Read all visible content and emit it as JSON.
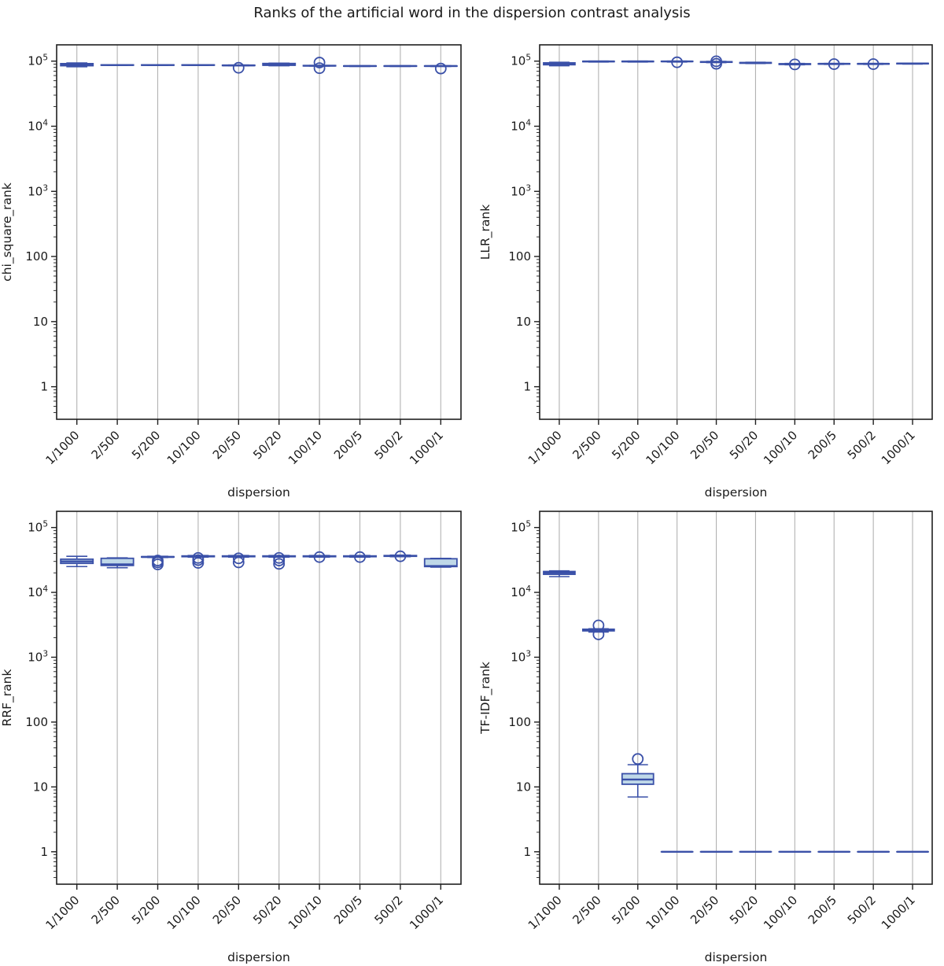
{
  "title": "Ranks of the artificial word in the dispersion contrast analysis",
  "colors": {
    "box_edge": "#3a50a8",
    "box_fill": "#bfd8e8",
    "grid": "#b2b2b2",
    "spine": "#1f1f1f",
    "text": "#1a1a1a"
  },
  "chart_data": [
    {
      "type": "boxplot",
      "ylabel": "chi_square_rank",
      "xlabel": "dispersion",
      "yscale": "log",
      "ylim_log": [
        -0.5,
        5.25
      ],
      "grid": "vertical",
      "legend": "none",
      "yticks": [
        {
          "base": "1",
          "sup": "",
          "log": 0
        },
        {
          "base": "10",
          "sup": "",
          "log": 1
        },
        {
          "base": "100",
          "sup": "",
          "log": 2
        },
        {
          "base": "10",
          "sup": "3",
          "log": 3
        },
        {
          "base": "10",
          "sup": "4",
          "log": 4
        },
        {
          "base": "10",
          "sup": "5",
          "log": 5
        }
      ],
      "categories": [
        "1/1000",
        "2/500",
        "5/200",
        "10/100",
        "20/50",
        "50/20",
        "100/10",
        "200/5",
        "500/2",
        "1000/1"
      ],
      "boxes": [
        {
          "whislo": 82000,
          "q1": 85000,
          "med": 88000,
          "q3": 91500,
          "whishi": 93500,
          "fliers": []
        },
        {
          "whislo": 86000,
          "q1": 86500,
          "med": 87000,
          "q3": 87500,
          "whishi": 88000,
          "fliers": []
        },
        {
          "whislo": 86000,
          "q1": 86500,
          "med": 87000,
          "q3": 87500,
          "whishi": 88000,
          "fliers": []
        },
        {
          "whislo": 86000,
          "q1": 86500,
          "med": 87000,
          "q3": 87500,
          "whishi": 88000,
          "fliers": []
        },
        {
          "whislo": 85000,
          "q1": 85500,
          "med": 86000,
          "q3": 86500,
          "whishi": 87000,
          "fliers": [
            79000
          ]
        },
        {
          "whislo": 85000,
          "q1": 86500,
          "med": 87500,
          "q3": 92000,
          "whishi": 93000,
          "fliers": []
        },
        {
          "whislo": 84000,
          "q1": 84500,
          "med": 85000,
          "q3": 85500,
          "whishi": 86000,
          "fliers": [
            95000,
            78000
          ]
        },
        {
          "whislo": 83000,
          "q1": 83500,
          "med": 84000,
          "q3": 84500,
          "whishi": 85000,
          "fliers": []
        },
        {
          "whislo": 83000,
          "q1": 83500,
          "med": 84000,
          "q3": 84500,
          "whishi": 85000,
          "fliers": []
        },
        {
          "whislo": 83000,
          "q1": 83500,
          "med": 84000,
          "q3": 84500,
          "whishi": 85000,
          "fliers": [
            77000
          ]
        }
      ]
    },
    {
      "type": "boxplot",
      "ylabel": "LLR_rank",
      "xlabel": "dispersion",
      "yscale": "log",
      "ylim_log": [
        -0.5,
        5.25
      ],
      "grid": "vertical",
      "legend": "none",
      "yticks": [
        {
          "base": "1",
          "sup": "",
          "log": 0
        },
        {
          "base": "10",
          "sup": "",
          "log": 1
        },
        {
          "base": "100",
          "sup": "",
          "log": 2
        },
        {
          "base": "10",
          "sup": "3",
          "log": 3
        },
        {
          "base": "10",
          "sup": "4",
          "log": 4
        },
        {
          "base": "10",
          "sup": "5",
          "log": 5
        }
      ],
      "categories": [
        "1/1000",
        "2/500",
        "5/200",
        "10/100",
        "20/50",
        "50/20",
        "100/10",
        "200/5",
        "500/2",
        "1000/1"
      ],
      "boxes": [
        {
          "whislo": 85000,
          "q1": 88000,
          "med": 90000,
          "q3": 94000,
          "whishi": 96000,
          "fliers": []
        },
        {
          "whislo": 97000,
          "q1": 98000,
          "med": 99000,
          "q3": 99500,
          "whishi": 100000,
          "fliers": []
        },
        {
          "whislo": 97000,
          "q1": 98000,
          "med": 99000,
          "q3": 99500,
          "whishi": 100000,
          "fliers": []
        },
        {
          "whislo": 97000,
          "q1": 98500,
          "med": 99000,
          "q3": 99500,
          "whishi": 100000,
          "fliers": [
            96000
          ]
        },
        {
          "whislo": 95000,
          "q1": 96000,
          "med": 97000,
          "q3": 98000,
          "whishi": 99000,
          "fliers": [
            99500,
            91000
          ]
        },
        {
          "whislo": 92000,
          "q1": 93000,
          "med": 94000,
          "q3": 95000,
          "whishi": 96000,
          "fliers": []
        },
        {
          "whislo": 88000,
          "q1": 89000,
          "med": 90000,
          "q3": 91000,
          "whishi": 92000,
          "fliers": [
            89000
          ]
        },
        {
          "whislo": 89000,
          "q1": 90000,
          "med": 91000,
          "q3": 91500,
          "whishi": 92000,
          "fliers": [
            90000
          ]
        },
        {
          "whislo": 89000,
          "q1": 90000,
          "med": 91000,
          "q3": 91500,
          "whishi": 92000,
          "fliers": [
            90000
          ]
        },
        {
          "whislo": 90000,
          "q1": 91000,
          "med": 92000,
          "q3": 92500,
          "whishi": 93000,
          "fliers": []
        }
      ]
    },
    {
      "type": "boxplot",
      "ylabel": "RRF_rank",
      "xlabel": "dispersion",
      "yscale": "log",
      "ylim_log": [
        -0.5,
        5.25
      ],
      "grid": "vertical",
      "legend": "none",
      "yticks": [
        {
          "base": "1",
          "sup": "",
          "log": 0
        },
        {
          "base": "10",
          "sup": "",
          "log": 1
        },
        {
          "base": "100",
          "sup": "",
          "log": 2
        },
        {
          "base": "10",
          "sup": "3",
          "log": 3
        },
        {
          "base": "10",
          "sup": "4",
          "log": 4
        },
        {
          "base": "10",
          "sup": "5",
          "log": 5
        }
      ],
      "categories": [
        "1/1000",
        "2/500",
        "5/200",
        "10/100",
        "20/50",
        "50/20",
        "100/10",
        "200/5",
        "500/2",
        "1000/1"
      ],
      "boxes": [
        {
          "whislo": 25000,
          "q1": 28000,
          "med": 30000,
          "q3": 32500,
          "whishi": 36000,
          "fliers": []
        },
        {
          "whislo": 24000,
          "q1": 26000,
          "med": 27000,
          "q3": 33500,
          "whishi": 34000,
          "fliers": []
        },
        {
          "whislo": 34500,
          "q1": 35000,
          "med": 35200,
          "q3": 35500,
          "whishi": 36000,
          "fliers": [
            31000,
            29000,
            27000
          ]
        },
        {
          "whislo": 35000,
          "q1": 35500,
          "med": 36000,
          "q3": 36500,
          "whishi": 37000,
          "fliers": [
            34000,
            31500,
            28500
          ]
        },
        {
          "whislo": 35000,
          "q1": 35500,
          "med": 36000,
          "q3": 36500,
          "whishi": 37000,
          "fliers": [
            33500,
            29000
          ]
        },
        {
          "whislo": 35000,
          "q1": 35500,
          "med": 36000,
          "q3": 36500,
          "whishi": 37000,
          "fliers": [
            34000,
            31000,
            27500
          ]
        },
        {
          "whislo": 35000,
          "q1": 35500,
          "med": 36000,
          "q3": 36500,
          "whishi": 37000,
          "fliers": [
            35000
          ]
        },
        {
          "whislo": 35000,
          "q1": 35500,
          "med": 36000,
          "q3": 36500,
          "whishi": 37000,
          "fliers": [
            35000
          ]
        },
        {
          "whislo": 35500,
          "q1": 36000,
          "med": 36500,
          "q3": 37000,
          "whishi": 37500,
          "fliers": [
            36000
          ]
        },
        {
          "whislo": 24500,
          "q1": 25000,
          "med": 25500,
          "q3": 33000,
          "whishi": 33500,
          "fliers": []
        }
      ]
    },
    {
      "type": "boxplot",
      "ylabel": "TF-IDF_rank",
      "xlabel": "dispersion",
      "yscale": "log",
      "ylim_log": [
        -0.5,
        5.25
      ],
      "grid": "vertical",
      "legend": "none",
      "yticks": [
        {
          "base": "1",
          "sup": "",
          "log": 0
        },
        {
          "base": "10",
          "sup": "",
          "log": 1
        },
        {
          "base": "100",
          "sup": "",
          "log": 2
        },
        {
          "base": "10",
          "sup": "3",
          "log": 3
        },
        {
          "base": "10",
          "sup": "4",
          "log": 4
        },
        {
          "base": "10",
          "sup": "5",
          "log": 5
        }
      ],
      "categories": [
        "1/1000",
        "2/500",
        "5/200",
        "10/100",
        "20/50",
        "50/20",
        "100/10",
        "200/5",
        "500/2",
        "1000/1"
      ],
      "boxes": [
        {
          "whislo": 17500,
          "q1": 19000,
          "med": 20000,
          "q3": 21000,
          "whishi": 21500,
          "fliers": []
        },
        {
          "whislo": 2450,
          "q1": 2550,
          "med": 2600,
          "q3": 2700,
          "whishi": 2750,
          "fliers": [
            3100,
            2250
          ]
        },
        {
          "whislo": 7,
          "q1": 11,
          "med": 13,
          "q3": 16,
          "whishi": 22,
          "fliers": [
            27
          ]
        },
        {
          "whislo": 1,
          "q1": 1,
          "med": 1,
          "q3": 1,
          "whishi": 1,
          "fliers": []
        },
        {
          "whislo": 1,
          "q1": 1,
          "med": 1,
          "q3": 1,
          "whishi": 1,
          "fliers": []
        },
        {
          "whislo": 1,
          "q1": 1,
          "med": 1,
          "q3": 1,
          "whishi": 1,
          "fliers": []
        },
        {
          "whislo": 1,
          "q1": 1,
          "med": 1,
          "q3": 1,
          "whishi": 1,
          "fliers": []
        },
        {
          "whislo": 1,
          "q1": 1,
          "med": 1,
          "q3": 1,
          "whishi": 1,
          "fliers": []
        },
        {
          "whislo": 1,
          "q1": 1,
          "med": 1,
          "q3": 1,
          "whishi": 1,
          "fliers": []
        },
        {
          "whislo": 1,
          "q1": 1,
          "med": 1,
          "q3": 1,
          "whishi": 1,
          "fliers": []
        }
      ]
    }
  ]
}
